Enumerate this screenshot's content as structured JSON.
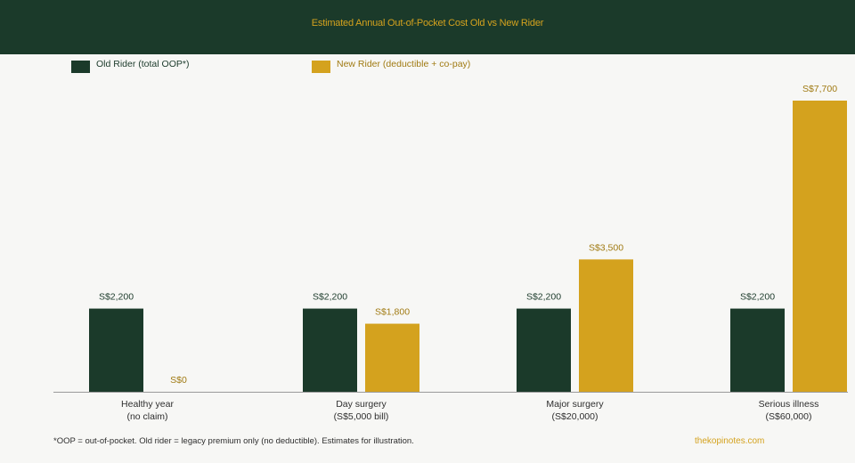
{
  "chart_data": {
    "type": "bar",
    "title": "Estimated Annual Out-of-Pocket Cost Old vs New Rider",
    "categories": [
      [
        "Healthy year",
        "(no claim)"
      ],
      [
        "Day surgery",
        "(S$5,000 bill)"
      ],
      [
        "Major surgery",
        "(S$20,000)"
      ],
      [
        "Serious illness",
        "(S$60,000)"
      ]
    ],
    "series": [
      {
        "name": "Old Rider (total OOP*)",
        "color": "#1b3a2a",
        "values": [
          2200,
          2200,
          2200,
          2200
        ],
        "labels": [
          "S$2,200",
          "S$2,200",
          "S$2,200",
          "S$2,200"
        ]
      },
      {
        "name": "New Rider (deductible + co-pay)",
        "color": "#d4a21e",
        "values": [
          0,
          1800,
          3500,
          7700
        ],
        "labels": [
          "S$0",
          "S$1,800",
          "S$3,500",
          "S$7,700"
        ]
      }
    ],
    "xlabel": "",
    "ylabel": "",
    "ylim": [
      0,
      7700
    ],
    "grid": false,
    "legend_position": "top-left"
  },
  "footnote": "*OOP = out-of-pocket. Old rider = legacy premium only (no deductible). Estimates for illustration.",
  "credit": "thekopinotes.com",
  "colors": {
    "header_bg": "#1b3a2a",
    "accent": "#d4a21e",
    "old_label_text": "#1b3a2a",
    "new_label_text": "#a07a12",
    "axis": "#9a9a9a"
  }
}
